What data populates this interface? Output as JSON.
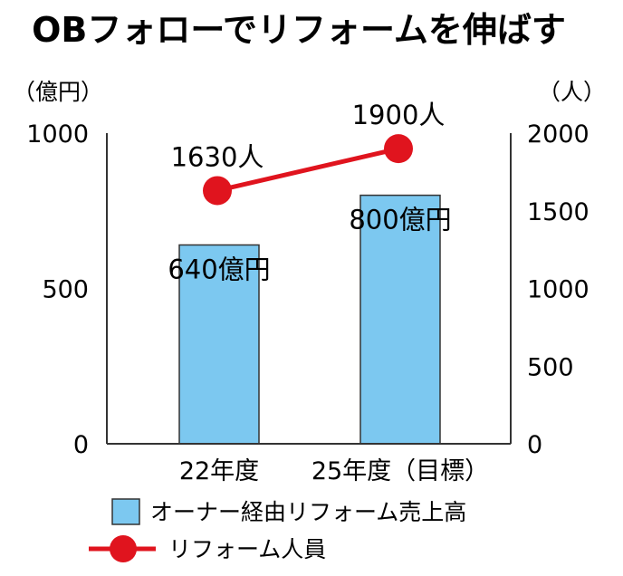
{
  "chart_data": {
    "type": "bar+line",
    "title": "OBフォローでリフォームを伸ばす",
    "categories": [
      "22年度",
      "25年度（目標）"
    ],
    "bar_series": {
      "name": "オーナー経由リフォーム売上高",
      "unit": "（億円）",
      "values": [
        640,
        800
      ],
      "data_labels": [
        "640億円",
        "800億円"
      ],
      "ylim": [
        0,
        1000
      ],
      "ticks": [
        0,
        500,
        1000
      ],
      "color": "#7cc8f0"
    },
    "line_series": {
      "name": "リフォーム人員",
      "unit": "（人）",
      "values": [
        1630,
        1900
      ],
      "data_labels": [
        "1630人",
        "1900人"
      ],
      "ylim": [
        0,
        2000
      ],
      "ticks": [
        0,
        500,
        1000,
        1500,
        2000
      ],
      "color": "#e0141e"
    }
  }
}
